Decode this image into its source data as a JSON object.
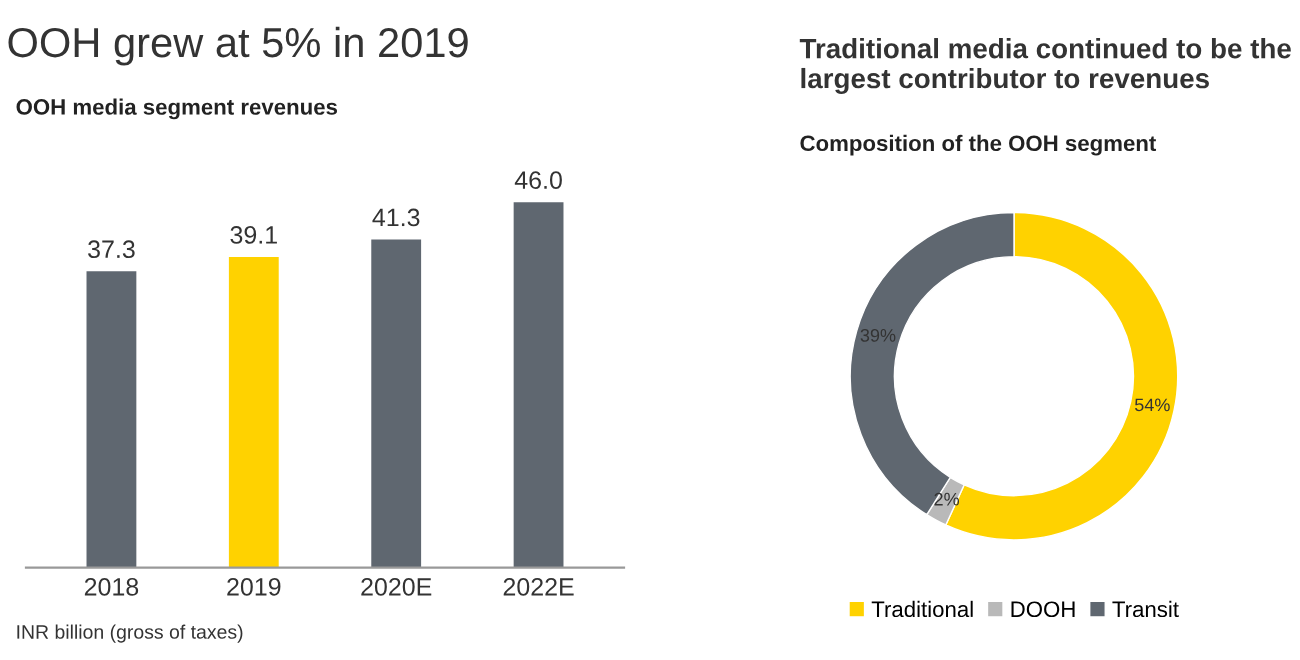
{
  "chart_data": [
    {
      "type": "bar",
      "title": "OOH grew at 5% in 2019",
      "subtitle": "OOH media segment revenues",
      "categories": [
        "2018",
        "2019",
        "2020E",
        "2022E"
      ],
      "values": [
        37.3,
        39.1,
        41.3,
        46.0
      ],
      "value_labels": [
        "37.3",
        "39.1",
        "41.3",
        "46.0"
      ],
      "colors": [
        "#5f6770",
        "#ffd200",
        "#5f6770",
        "#5f6770"
      ],
      "annotations": [
        "INR billion (gross of taxes)"
      ]
    },
    {
      "type": "donut",
      "title": "Traditional media continued to be the largest contributor to revenues",
      "subtitle": "Composition of the OOH segment",
      "categories": [
        "Traditional",
        "DOOH",
        "Transit"
      ],
      "values": [
        54,
        2,
        39
      ],
      "value_labels": [
        "54%",
        "2%",
        "39%"
      ],
      "colors": [
        "#ffd200",
        "#b9b9b9",
        "#5f6770"
      ],
      "legend": "bottom"
    }
  ]
}
